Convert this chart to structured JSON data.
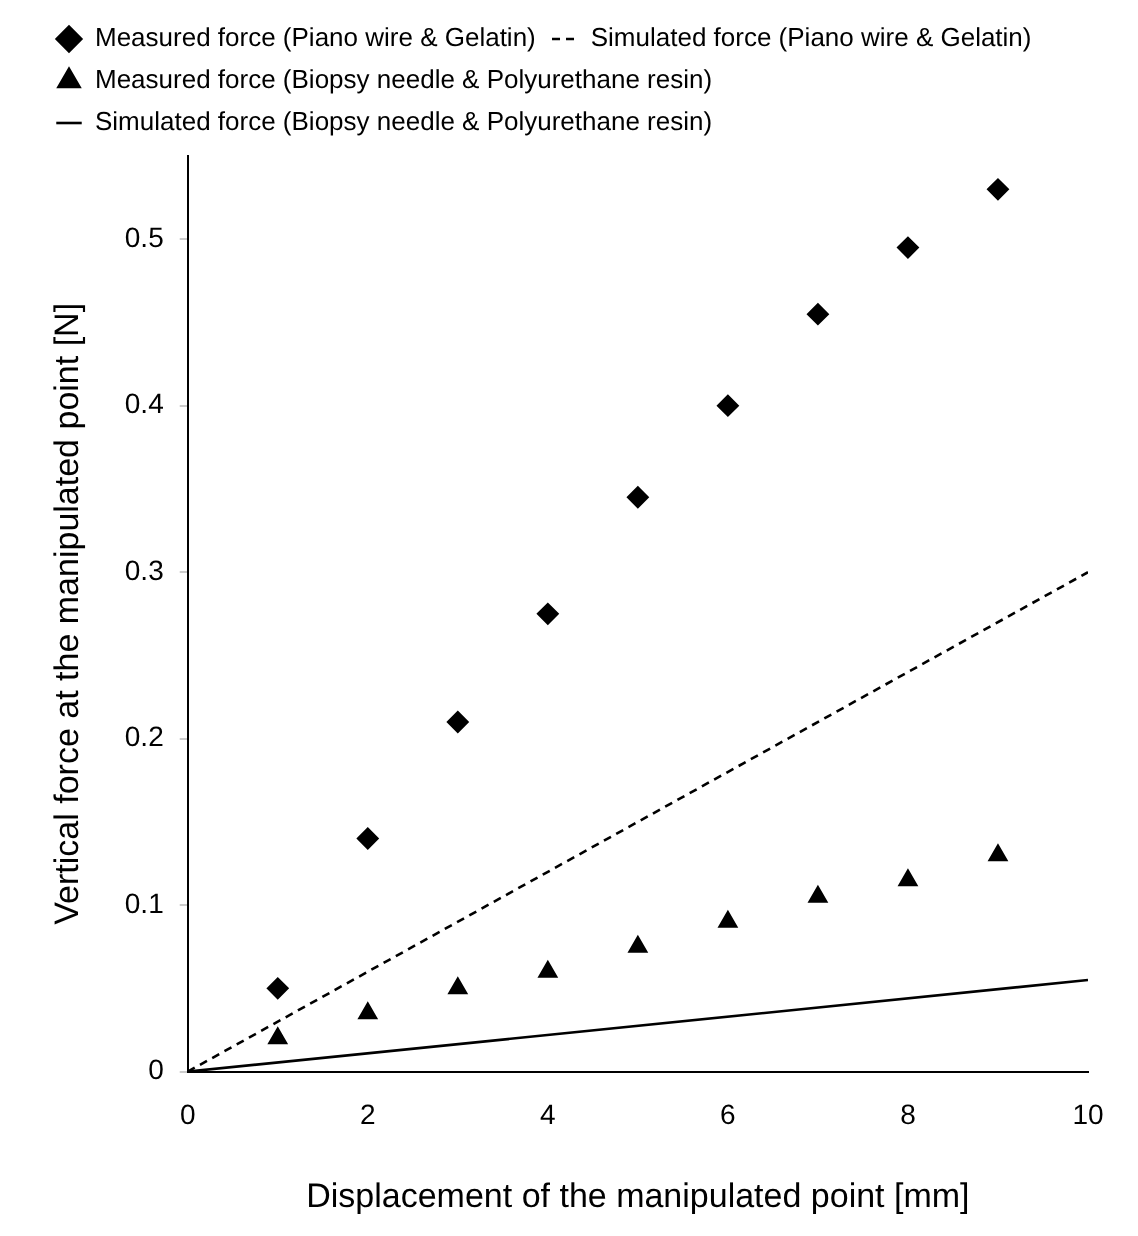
{
  "chart_data": {
    "type": "scatter",
    "xlabel": "Displacement of the manipulated point [mm]",
    "ylabel": "Vertical force at the manipulated point [N]",
    "xlim": [
      0,
      10
    ],
    "xticks": [
      0,
      2,
      4,
      6,
      8,
      10
    ],
    "ylim": [
      0,
      0.55
    ],
    "yticks": [
      0,
      0.1,
      0.2,
      0.3,
      0.4,
      0.5
    ],
    "grid": false,
    "legend": "top",
    "series": [
      {
        "name": "Measured force (Piano wire & Gelatin)",
        "type": "scatter",
        "marker": "diamond",
        "color": "#000000",
        "x": [
          1,
          2,
          3,
          4,
          5,
          6,
          7,
          8,
          9
        ],
        "values": [
          0.05,
          0.14,
          0.21,
          0.275,
          0.345,
          0.4,
          0.455,
          0.495,
          0.53
        ]
      },
      {
        "name": "Simulated force (Piano wire & Gelatin)",
        "type": "line",
        "marker": "none",
        "line_style": "dashed",
        "color": "#000000",
        "x": [
          0,
          10
        ],
        "values": [
          0,
          0.3
        ]
      },
      {
        "name": "Measured force (Biopsy needle & Polyurethane resin)",
        "type": "scatter",
        "marker": "triangle",
        "color": "#000000",
        "x": [
          1,
          2,
          3,
          4,
          5,
          6,
          7,
          8,
          9
        ],
        "values": [
          0.02,
          0.035,
          0.05,
          0.06,
          0.075,
          0.09,
          0.105,
          0.115,
          0.13
        ]
      },
      {
        "name": "Simulated force (Biopsy needle & Polyurethane resin)",
        "type": "line",
        "marker": "none",
        "line_style": "solid",
        "color": "#000000",
        "x": [
          0,
          10
        ],
        "values": [
          0,
          0.055
        ]
      }
    ]
  }
}
